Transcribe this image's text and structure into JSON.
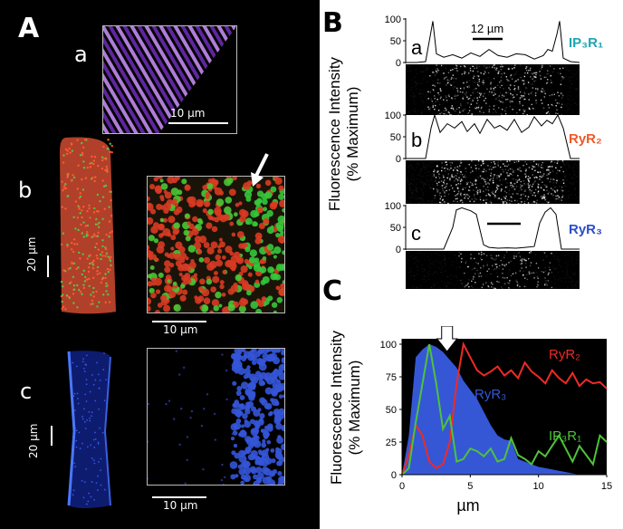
{
  "panel_A": {
    "label": "A",
    "a": {
      "label": "a",
      "scale": "10 µm",
      "color": "#8a3fd6"
    },
    "b": {
      "label": "b",
      "scale_left": "20 µm",
      "scale_right": "10 µm"
    },
    "c": {
      "label": "c",
      "scale_left": "20 µm",
      "scale_right": "10 µm",
      "color": "#3455d8"
    }
  },
  "panel_B": {
    "label": "B",
    "ylabel_line1": "Fluorescence Intensity",
    "ylabel_line2": "(% Maximum)",
    "scale_label": "12 µm",
    "sub_plots": [
      {
        "label": "a",
        "receptor": "IP₃R₁",
        "color": "#1aa6b0",
        "ticks": [
          "100",
          "50",
          "0"
        ]
      },
      {
        "label": "b",
        "receptor": "RyR₂",
        "color": "#ef5a28",
        "ticks": [
          "100",
          "50",
          "0"
        ]
      },
      {
        "label": "c",
        "receptor": "RyR₃",
        "color": "#2b4ec9",
        "ticks": [
          "100",
          "50",
          "0"
        ]
      }
    ]
  },
  "chart_data": {
    "type": "line",
    "label": "C",
    "ylabel_line1": "Fluorescence Intensity",
    "ylabel_line2": "(% Maximum)",
    "xlabel": "µm",
    "xlim": [
      0,
      15
    ],
    "ylim": [
      0,
      100
    ],
    "xticks": [
      "0",
      "5",
      "10",
      "15"
    ],
    "yticks": [
      "0",
      "25",
      "50",
      "75",
      "100"
    ],
    "series": [
      {
        "name": "RyR₃",
        "kind": "area",
        "color": "#3557d6",
        "x": [
          0,
          0.5,
          1.0,
          1.5,
          2.0,
          2.5,
          3.0,
          3.5,
          4.0,
          4.5,
          5.0,
          5.5,
          6.0,
          6.5,
          7.0,
          7.5,
          8.0,
          8.5,
          9.0,
          9.5,
          10.0,
          10.5,
          11.0,
          11.5,
          12.0,
          12.5,
          13.0
        ],
        "y": [
          0,
          30,
          90,
          96,
          100,
          98,
          94,
          88,
          82,
          72,
          65,
          58,
          48,
          38,
          30,
          27,
          26,
          12,
          10,
          8,
          6,
          5,
          4,
          3,
          2,
          1,
          0
        ]
      },
      {
        "name": "RyR₂",
        "kind": "line",
        "color": "#ef2a25",
        "x": [
          0,
          0.5,
          1.0,
          1.5,
          2.0,
          2.5,
          3.0,
          3.5,
          4.0,
          4.5,
          5.0,
          5.5,
          6.0,
          6.5,
          7.0,
          7.5,
          8.0,
          8.5,
          9.0,
          9.5,
          10.0,
          10.5,
          11.0,
          11.5,
          12.0,
          12.5,
          13.0,
          13.5,
          14.0,
          14.5,
          15.0
        ],
        "y": [
          0,
          15,
          38,
          30,
          10,
          5,
          8,
          25,
          70,
          100,
          90,
          80,
          76,
          79,
          83,
          76,
          80,
          74,
          86,
          79,
          75,
          70,
          80,
          74,
          70,
          78,
          68,
          73,
          70,
          71,
          66
        ]
      },
      {
        "name": "IP₃R₁",
        "kind": "line",
        "color": "#4fc23a",
        "x": [
          0,
          0.5,
          1.0,
          1.5,
          2.0,
          2.5,
          3.0,
          3.5,
          4.0,
          4.5,
          5.0,
          5.5,
          6.0,
          6.5,
          7.0,
          7.5,
          8.0,
          8.5,
          9.0,
          9.5,
          10.0,
          10.5,
          11.0,
          11.5,
          12.0,
          12.5,
          13.0,
          13.5,
          14.0,
          14.5,
          15.0
        ],
        "y": [
          0,
          5,
          40,
          70,
          100,
          70,
          35,
          45,
          10,
          12,
          20,
          18,
          14,
          20,
          10,
          12,
          28,
          15,
          12,
          8,
          18,
          14,
          22,
          30,
          20,
          10,
          22,
          15,
          8,
          30,
          25
        ]
      }
    ],
    "annotations": [
      "RyR₂",
      "RyR₃",
      "IP₃R₁"
    ]
  }
}
